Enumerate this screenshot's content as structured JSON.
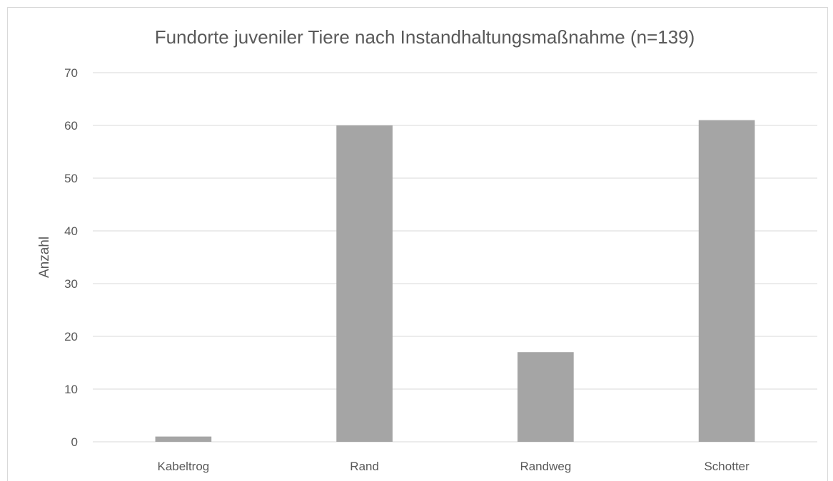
{
  "chart_data": {
    "type": "bar",
    "title": "Fundorte juveniler Tiere nach Instandhaltungsmaßnahme (n=139)",
    "xlabel": "",
    "ylabel": "Anzahl",
    "categories": [
      "Kabeltrog",
      "Rand",
      "Randweg",
      "Schotter"
    ],
    "values": [
      1,
      60,
      17,
      61
    ],
    "ylim": [
      0,
      70
    ],
    "yticks": [
      0,
      10,
      20,
      30,
      40,
      50,
      60,
      70
    ],
    "grid": true,
    "legend": "none",
    "bar_color": "#a5a5a5",
    "grid_color": "#d9d9d9",
    "text_color": "#595959"
  }
}
